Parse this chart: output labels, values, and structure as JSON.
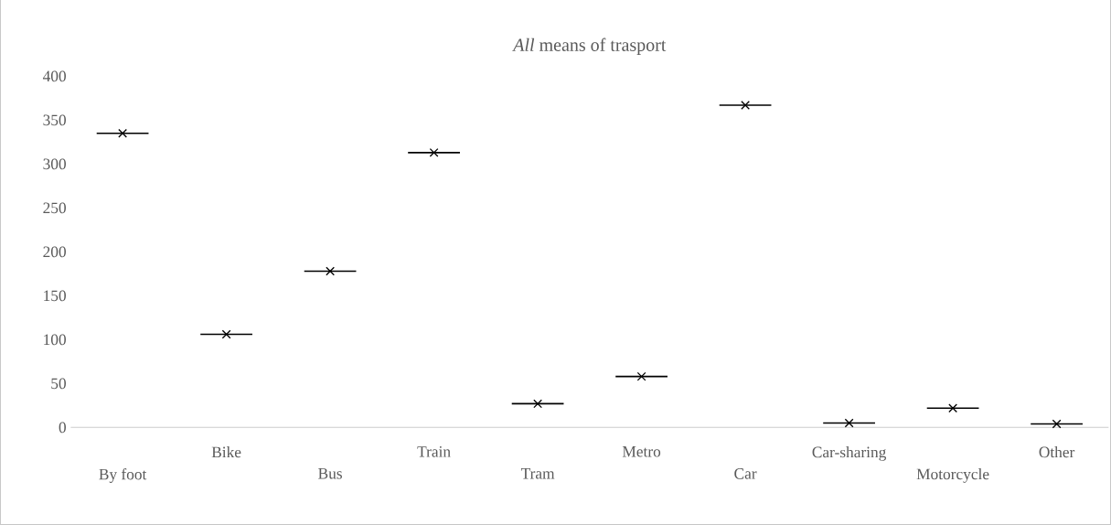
{
  "chart_data": {
    "type": "box",
    "title": "*All* means of trasport",
    "categories": [
      "By foot",
      "Bike",
      "Bus",
      "Train",
      "Tram",
      "Metro",
      "Car",
      "Car-sharing",
      "Motorcycle",
      "Other"
    ],
    "boxes": [
      {
        "low": 335,
        "q1": 335,
        "median": 335,
        "q3": 335,
        "high": 335,
        "mean": 335
      },
      {
        "low": 106,
        "q1": 106,
        "median": 106,
        "q3": 106,
        "high": 106,
        "mean": 106
      },
      {
        "low": 178,
        "q1": 178,
        "median": 178,
        "q3": 178,
        "high": 178,
        "mean": 178
      },
      {
        "low": 313,
        "q1": 313,
        "median": 313,
        "q3": 313,
        "high": 313,
        "mean": 313
      },
      {
        "low": 27,
        "q1": 27,
        "median": 27,
        "q3": 27,
        "high": 27,
        "mean": 27
      },
      {
        "low": 58,
        "q1": 58,
        "median": 58,
        "q3": 58,
        "high": 58,
        "mean": 58
      },
      {
        "low": 367,
        "q1": 367,
        "median": 367,
        "q3": 367,
        "high": 367,
        "mean": 367
      },
      {
        "low": 5,
        "q1": 5,
        "median": 5,
        "q3": 5,
        "high": 5,
        "mean": 5
      },
      {
        "low": 22,
        "q1": 22,
        "median": 22,
        "q3": 22,
        "high": 22,
        "mean": 22
      },
      {
        "low": 4,
        "q1": 4,
        "median": 4,
        "q3": 4,
        "high": 4,
        "mean": 4
      }
    ],
    "color": "#000000",
    "marker": "cross",
    "ylim": [
      0,
      400
    ],
    "yticks": [
      0,
      50,
      100,
      150,
      200,
      250,
      300,
      350,
      400
    ],
    "grid": false
  }
}
